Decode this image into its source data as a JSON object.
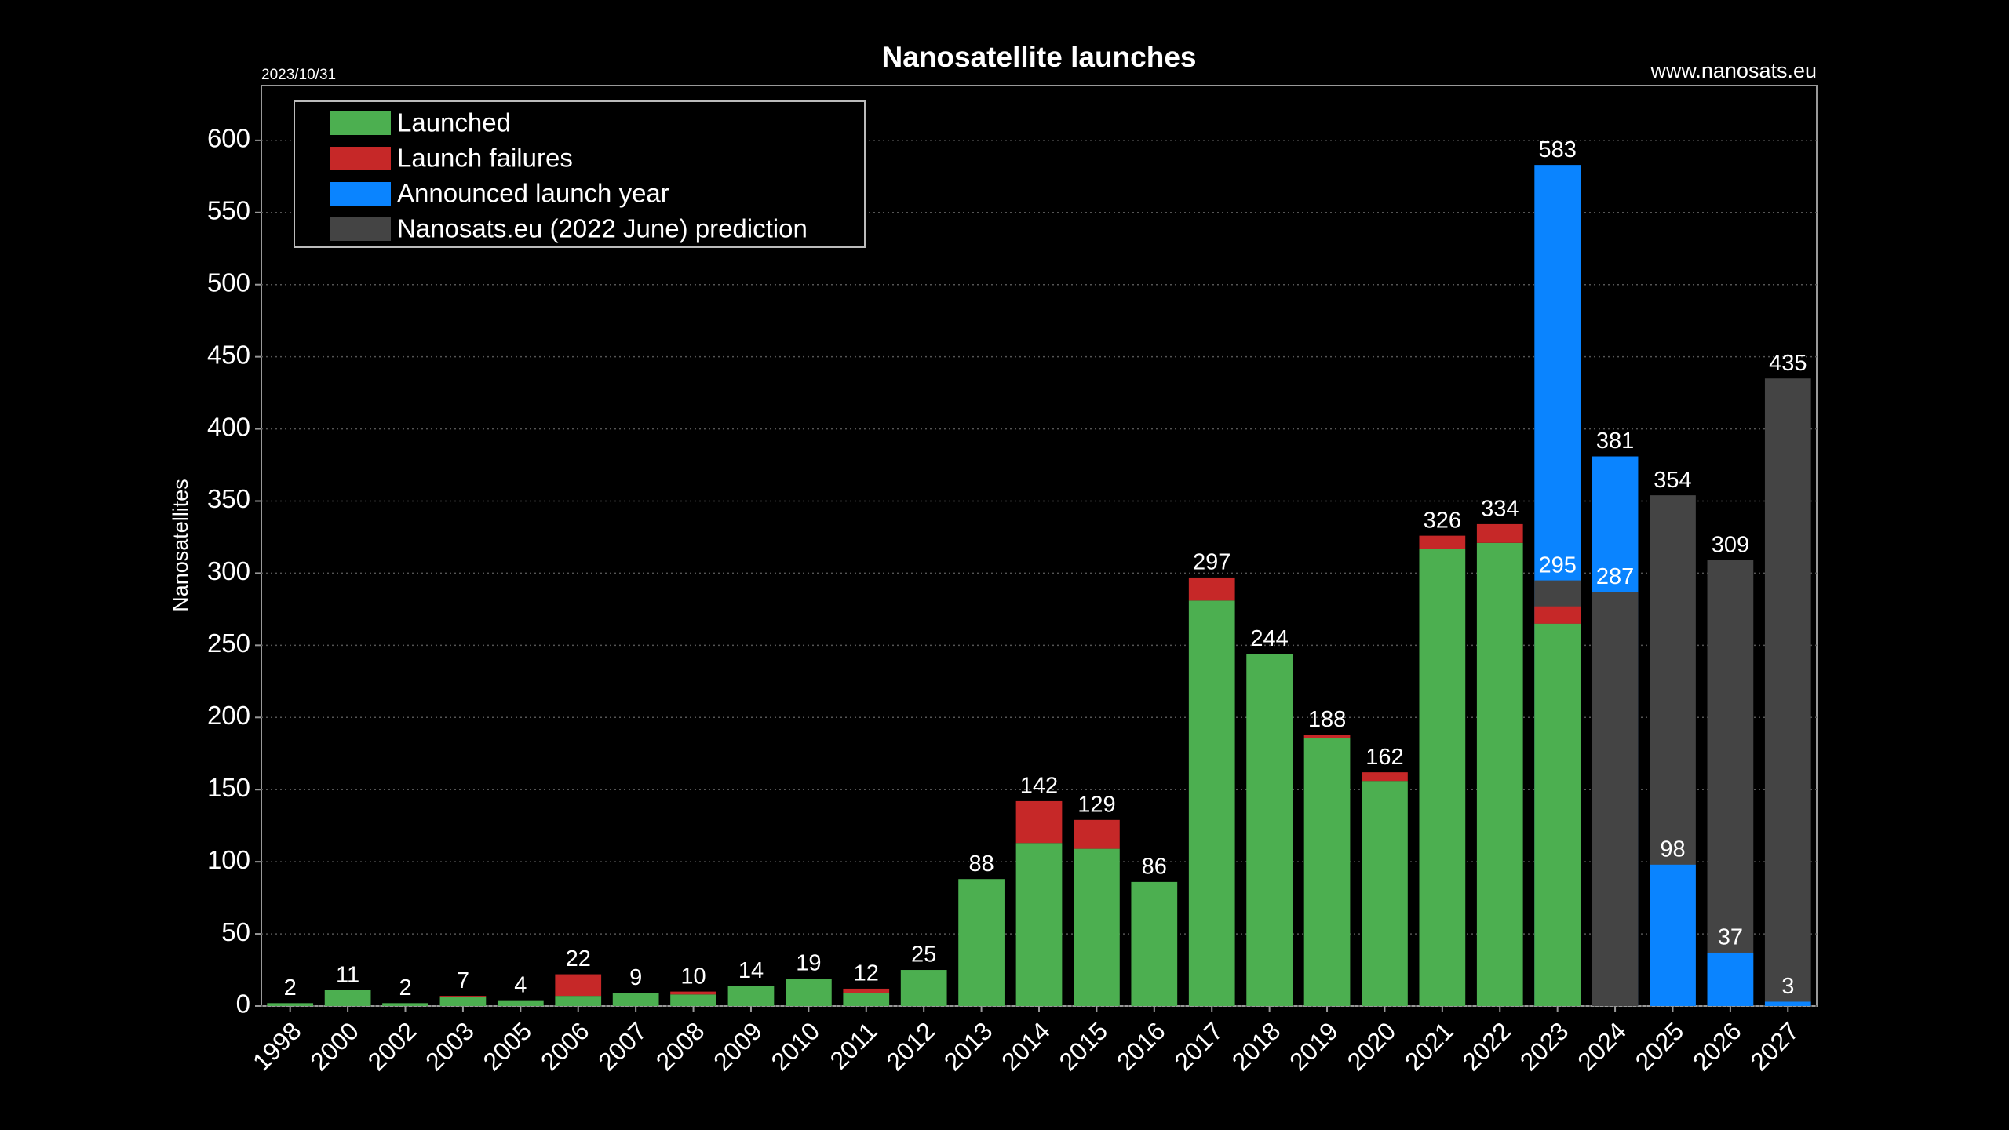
{
  "chart_data": {
    "type": "bar",
    "title": "Nanosatellite launches",
    "date": "2023/10/31",
    "source": "www.nanosats.eu",
    "y_label": "Nanosatellites",
    "categories": [
      "1998",
      "2000",
      "2002",
      "2003",
      "2005",
      "2006",
      "2007",
      "2008",
      "2009",
      "2010",
      "2011",
      "2012",
      "2013",
      "2014",
      "2015",
      "2016",
      "2017",
      "2018",
      "2019",
      "2020",
      "2021",
      "2022",
      "2023",
      "2024",
      "2025",
      "2026",
      "2027"
    ],
    "series": [
      {
        "name": "Launched",
        "color": "#4caf50",
        "values": [
          2,
          11,
          2,
          6,
          4,
          7,
          9,
          8,
          14,
          19,
          9,
          25,
          88,
          113,
          109,
          86,
          281,
          244,
          186,
          156,
          317,
          321,
          265,
          null,
          null,
          null,
          null
        ]
      },
      {
        "name": "Launch failures",
        "color": "#c62828",
        "values": [
          0,
          0,
          0,
          1,
          0,
          15,
          0,
          2,
          0,
          0,
          3,
          0,
          0,
          29,
          20,
          0,
          16,
          0,
          2,
          6,
          9,
          13,
          12,
          null,
          null,
          null,
          null
        ]
      },
      {
        "name": "Announced launch year",
        "color": "#0a84ff",
        "values": [
          null,
          null,
          null,
          null,
          null,
          null,
          null,
          null,
          null,
          null,
          null,
          null,
          null,
          null,
          null,
          null,
          null,
          null,
          null,
          null,
          null,
          null,
          583,
          381,
          98,
          37,
          3
        ]
      },
      {
        "name": "Nanosats.eu (2022 June) prediction",
        "color": "#444444",
        "values": [
          null,
          null,
          null,
          null,
          null,
          null,
          null,
          null,
          null,
          null,
          null,
          null,
          null,
          null,
          null,
          null,
          null,
          null,
          null,
          null,
          null,
          null,
          295,
          287,
          354,
          309,
          435
        ]
      }
    ],
    "totals": [
      2,
      11,
      2,
      7,
      4,
      22,
      9,
      10,
      14,
      19,
      12,
      25,
      88,
      142,
      129,
      86,
      297,
      244,
      188,
      162,
      326,
      334,
      null,
      null,
      null,
      null,
      null
    ],
    "ylim": [
      0,
      638
    ],
    "yticks": [
      0,
      50,
      100,
      150,
      200,
      250,
      300,
      350,
      400,
      450,
      500,
      550,
      600
    ],
    "grid": true,
    "legend": "upper left"
  }
}
